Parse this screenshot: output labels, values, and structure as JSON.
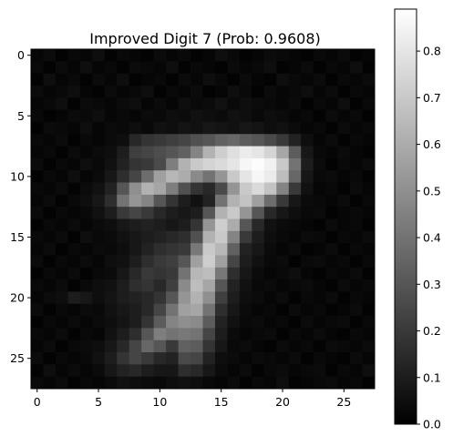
{
  "chart_data": {
    "type": "heatmap",
    "title": "Improved Digit 7 (Prob: 0.9608)",
    "colormap": "gray",
    "rows": 28,
    "cols": 28,
    "x_ticks": [
      0,
      5,
      10,
      15,
      20,
      25
    ],
    "y_ticks": [
      0,
      5,
      10,
      15,
      20,
      25
    ],
    "x_tick_labels": [
      "0",
      "5",
      "10",
      "15",
      "20",
      "25"
    ],
    "y_tick_labels": [
      "0",
      "5",
      "10",
      "15",
      "20",
      "25"
    ],
    "xlim": [
      -0.5,
      27.5
    ],
    "ylim": [
      27.5,
      -0.5
    ],
    "colorbar": {
      "range": [
        0.0,
        0.89
      ],
      "ticks": [
        0.0,
        0.1,
        0.2,
        0.3,
        0.4,
        0.5,
        0.6,
        0.7,
        0.8
      ],
      "tick_labels": [
        "0.0",
        "0.1",
        "0.2",
        "0.3",
        "0.4",
        "0.5",
        "0.6",
        "0.7",
        "0.8"
      ]
    },
    "values": [
      [
        0.02,
        0.04,
        0.01,
        0.03,
        0.02,
        0.05,
        0.01,
        0.03,
        0.02,
        0.01,
        0.04,
        0.02,
        0.03,
        0.01,
        0.02,
        0.05,
        0.03,
        0.01,
        0.02,
        0.04,
        0.03,
        0.02,
        0.01,
        0.03,
        0.02,
        0.04,
        0.01,
        0.02
      ],
      [
        0.03,
        0.01,
        0.04,
        0.02,
        0.05,
        0.02,
        0.03,
        0.01,
        0.04,
        0.03,
        0.02,
        0.05,
        0.01,
        0.03,
        0.02,
        0.01,
        0.04,
        0.02,
        0.03,
        0.05,
        0.01,
        0.02,
        0.04,
        0.01,
        0.03,
        0.02,
        0.05,
        0.01
      ],
      [
        0.01,
        0.05,
        0.02,
        0.03,
        0.01,
        0.04,
        0.02,
        0.05,
        0.01,
        0.02,
        0.03,
        0.01,
        0.04,
        0.02,
        0.05,
        0.03,
        0.01,
        0.04,
        0.02,
        0.01,
        0.05,
        0.03,
        0.02,
        0.04,
        0.01,
        0.03,
        0.02,
        0.04
      ],
      [
        0.04,
        0.02,
        0.03,
        0.05,
        0.02,
        0.01,
        0.04,
        0.02,
        0.03,
        0.05,
        0.01,
        0.03,
        0.02,
        0.04,
        0.01,
        0.02,
        0.05,
        0.03,
        0.01,
        0.04,
        0.02,
        0.03,
        0.05,
        0.02,
        0.04,
        0.01,
        0.03,
        0.02
      ],
      [
        0.02,
        0.03,
        0.05,
        0.01,
        0.04,
        0.03,
        0.02,
        0.04,
        0.05,
        0.02,
        0.04,
        0.02,
        0.05,
        0.03,
        0.04,
        0.06,
        0.03,
        0.05,
        0.04,
        0.03,
        0.02,
        0.04,
        0.01,
        0.03,
        0.02,
        0.05,
        0.01,
        0.03
      ],
      [
        0.03,
        0.01,
        0.02,
        0.04,
        0.03,
        0.05,
        0.02,
        0.03,
        0.02,
        0.04,
        0.03,
        0.05,
        0.04,
        0.06,
        0.05,
        0.04,
        0.06,
        0.05,
        0.03,
        0.05,
        0.04,
        0.02,
        0.03,
        0.01,
        0.04,
        0.02,
        0.03,
        0.01
      ],
      [
        0.01,
        0.04,
        0.03,
        0.02,
        0.05,
        0.02,
        0.04,
        0.03,
        0.05,
        0.03,
        0.06,
        0.05,
        0.07,
        0.06,
        0.08,
        0.07,
        0.06,
        0.08,
        0.07,
        0.05,
        0.06,
        0.04,
        0.02,
        0.03,
        0.01,
        0.04,
        0.02,
        0.03
      ],
      [
        0.03,
        0.02,
        0.04,
        0.01,
        0.03,
        0.02,
        0.04,
        0.05,
        0.14,
        0.18,
        0.2,
        0.22,
        0.24,
        0.28,
        0.3,
        0.34,
        0.36,
        0.32,
        0.3,
        0.26,
        0.2,
        0.12,
        0.05,
        0.02,
        0.04,
        0.01,
        0.03,
        0.02
      ],
      [
        0.02,
        0.03,
        0.01,
        0.04,
        0.02,
        0.04,
        0.05,
        0.1,
        0.22,
        0.24,
        0.27,
        0.3,
        0.34,
        0.46,
        0.62,
        0.72,
        0.78,
        0.82,
        0.8,
        0.74,
        0.58,
        0.32,
        0.08,
        0.03,
        0.02,
        0.04,
        0.02,
        0.01
      ],
      [
        0.04,
        0.01,
        0.03,
        0.02,
        0.05,
        0.03,
        0.06,
        0.12,
        0.18,
        0.2,
        0.26,
        0.44,
        0.62,
        0.7,
        0.74,
        0.76,
        0.8,
        0.86,
        0.88,
        0.84,
        0.7,
        0.4,
        0.1,
        0.04,
        0.01,
        0.03,
        0.02,
        0.04
      ],
      [
        0.01,
        0.03,
        0.02,
        0.05,
        0.02,
        0.04,
        0.08,
        0.16,
        0.24,
        0.38,
        0.56,
        0.64,
        0.6,
        0.48,
        0.4,
        0.52,
        0.7,
        0.8,
        0.86,
        0.82,
        0.66,
        0.36,
        0.08,
        0.03,
        0.04,
        0.02,
        0.03,
        0.01
      ],
      [
        0.03,
        0.02,
        0.04,
        0.01,
        0.04,
        0.06,
        0.12,
        0.3,
        0.5,
        0.62,
        0.58,
        0.44,
        0.28,
        0.18,
        0.14,
        0.26,
        0.52,
        0.7,
        0.76,
        0.68,
        0.46,
        0.2,
        0.06,
        0.02,
        0.03,
        0.01,
        0.04,
        0.02
      ],
      [
        0.02,
        0.04,
        0.01,
        0.03,
        0.05,
        0.08,
        0.16,
        0.4,
        0.52,
        0.46,
        0.3,
        0.18,
        0.1,
        0.06,
        0.12,
        0.4,
        0.62,
        0.68,
        0.56,
        0.38,
        0.2,
        0.08,
        0.04,
        0.03,
        0.02,
        0.04,
        0.01,
        0.03
      ],
      [
        0.04,
        0.01,
        0.03,
        0.02,
        0.03,
        0.06,
        0.1,
        0.2,
        0.24,
        0.2,
        0.14,
        0.1,
        0.08,
        0.1,
        0.3,
        0.62,
        0.7,
        0.52,
        0.3,
        0.14,
        0.08,
        0.05,
        0.03,
        0.04,
        0.01,
        0.02,
        0.03,
        0.02
      ],
      [
        0.01,
        0.03,
        0.02,
        0.04,
        0.02,
        0.04,
        0.05,
        0.08,
        0.1,
        0.12,
        0.1,
        0.08,
        0.1,
        0.18,
        0.52,
        0.72,
        0.6,
        0.3,
        0.14,
        0.06,
        0.04,
        0.03,
        0.02,
        0.01,
        0.04,
        0.02,
        0.03,
        0.01
      ],
      [
        0.03,
        0.02,
        0.04,
        0.01,
        0.05,
        0.03,
        0.04,
        0.06,
        0.08,
        0.1,
        0.12,
        0.14,
        0.16,
        0.28,
        0.62,
        0.7,
        0.46,
        0.2,
        0.1,
        0.05,
        0.03,
        0.02,
        0.04,
        0.03,
        0.01,
        0.03,
        0.02,
        0.04
      ],
      [
        0.02,
        0.04,
        0.01,
        0.03,
        0.02,
        0.04,
        0.03,
        0.05,
        0.08,
        0.12,
        0.16,
        0.18,
        0.2,
        0.42,
        0.7,
        0.64,
        0.34,
        0.12,
        0.08,
        0.04,
        0.02,
        0.04,
        0.01,
        0.02,
        0.04,
        0.01,
        0.03,
        0.02
      ],
      [
        0.04,
        0.01,
        0.03,
        0.02,
        0.04,
        0.02,
        0.05,
        0.06,
        0.1,
        0.16,
        0.2,
        0.22,
        0.3,
        0.56,
        0.72,
        0.56,
        0.24,
        0.1,
        0.06,
        0.03,
        0.04,
        0.01,
        0.03,
        0.04,
        0.02,
        0.03,
        0.01,
        0.03
      ],
      [
        0.01,
        0.03,
        0.02,
        0.04,
        0.01,
        0.03,
        0.04,
        0.08,
        0.14,
        0.2,
        0.18,
        0.2,
        0.4,
        0.64,
        0.66,
        0.42,
        0.16,
        0.08,
        0.04,
        0.02,
        0.03,
        0.05,
        0.02,
        0.01,
        0.03,
        0.02,
        0.04,
        0.01
      ],
      [
        0.03,
        0.02,
        0.04,
        0.01,
        0.03,
        0.05,
        0.06,
        0.1,
        0.16,
        0.18,
        0.14,
        0.22,
        0.48,
        0.66,
        0.58,
        0.3,
        0.12,
        0.06,
        0.03,
        0.04,
        0.02,
        0.03,
        0.04,
        0.02,
        0.01,
        0.04,
        0.02,
        0.03
      ],
      [
        0.02,
        0.04,
        0.05,
        0.1,
        0.08,
        0.05,
        0.07,
        0.1,
        0.12,
        0.14,
        0.18,
        0.3,
        0.52,
        0.62,
        0.5,
        0.22,
        0.1,
        0.05,
        0.04,
        0.02,
        0.04,
        0.01,
        0.03,
        0.02,
        0.04,
        0.01,
        0.03,
        0.02
      ],
      [
        0.04,
        0.01,
        0.03,
        0.02,
        0.04,
        0.03,
        0.06,
        0.08,
        0.1,
        0.14,
        0.24,
        0.4,
        0.56,
        0.58,
        0.4,
        0.16,
        0.08,
        0.04,
        0.02,
        0.03,
        0.01,
        0.04,
        0.02,
        0.03,
        0.01,
        0.02,
        0.04,
        0.01
      ],
      [
        0.01,
        0.03,
        0.02,
        0.04,
        0.02,
        0.04,
        0.05,
        0.07,
        0.1,
        0.18,
        0.32,
        0.46,
        0.5,
        0.48,
        0.32,
        0.12,
        0.06,
        0.03,
        0.04,
        0.02,
        0.03,
        0.01,
        0.04,
        0.02,
        0.03,
        0.04,
        0.01,
        0.03
      ],
      [
        0.03,
        0.02,
        0.04,
        0.01,
        0.03,
        0.02,
        0.06,
        0.1,
        0.16,
        0.3,
        0.44,
        0.4,
        0.42,
        0.4,
        0.24,
        0.1,
        0.04,
        0.02,
        0.03,
        0.04,
        0.01,
        0.03,
        0.02,
        0.04,
        0.02,
        0.01,
        0.03,
        0.02
      ],
      [
        0.02,
        0.04,
        0.01,
        0.03,
        0.04,
        0.05,
        0.08,
        0.14,
        0.24,
        0.36,
        0.3,
        0.2,
        0.34,
        0.32,
        0.18,
        0.08,
        0.03,
        0.04,
        0.02,
        0.01,
        0.04,
        0.02,
        0.03,
        0.01,
        0.04,
        0.03,
        0.02,
        0.04
      ],
      [
        0.04,
        0.01,
        0.03,
        0.02,
        0.03,
        0.06,
        0.1,
        0.18,
        0.24,
        0.2,
        0.14,
        0.12,
        0.26,
        0.24,
        0.12,
        0.05,
        0.04,
        0.02,
        0.04,
        0.03,
        0.02,
        0.04,
        0.01,
        0.03,
        0.02,
        0.01,
        0.04,
        0.02
      ],
      [
        0.01,
        0.05,
        0.02,
        0.04,
        0.02,
        0.04,
        0.08,
        0.12,
        0.14,
        0.1,
        0.08,
        0.08,
        0.16,
        0.14,
        0.08,
        0.04,
        0.02,
        0.04,
        0.01,
        0.03,
        0.04,
        0.02,
        0.03,
        0.04,
        0.01,
        0.03,
        0.02,
        0.05
      ],
      [
        0.03,
        0.02,
        0.04,
        0.01,
        0.03,
        0.02,
        0.04,
        0.06,
        0.05,
        0.04,
        0.03,
        0.05,
        0.06,
        0.05,
        0.03,
        0.02,
        0.04,
        0.01,
        0.03,
        0.02,
        0.05,
        0.01,
        0.02,
        0.03,
        0.04,
        0.02,
        0.03,
        0.01
      ]
    ]
  }
}
